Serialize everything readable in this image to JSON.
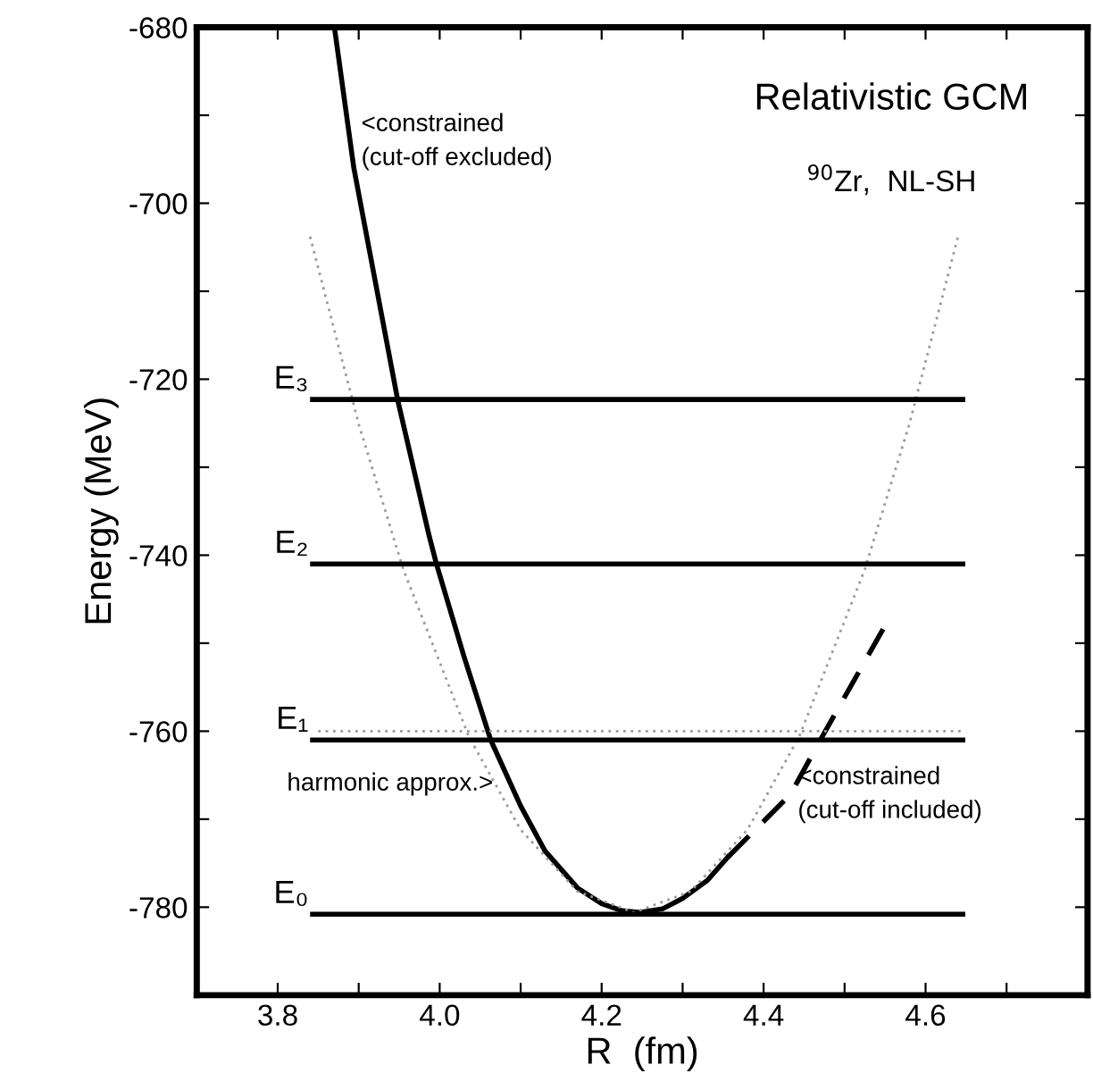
{
  "chart_data": {
    "type": "line",
    "xlabel": "R  (fm)",
    "ylabel": "Energy (MeV)",
    "xlim": [
      3.7,
      4.8
    ],
    "ylim": [
      -790,
      -680
    ],
    "xticks": [
      3.8,
      {
        "value": 3.9,
        "label": null
      },
      {
        "value": 4.0,
        "label": "4.0"
      },
      {
        "value": 4.1,
        "label": null
      },
      4.2,
      {
        "value": 4.3,
        "label": null
      },
      4.4,
      {
        "value": 4.5,
        "label": null
      },
      4.6,
      {
        "value": 4.7,
        "label": null
      }
    ],
    "yticks": [
      -680,
      {
        "value": -690,
        "label": null
      },
      -700,
      {
        "value": -710,
        "label": null
      },
      -720,
      {
        "value": -730,
        "label": null
      },
      -740,
      {
        "value": -750,
        "label": null
      },
      -760,
      {
        "value": -770,
        "label": null
      },
      -780
    ],
    "grid": false,
    "legend": false,
    "marker": "none",
    "series": [
      {
        "color": "#000000",
        "line_style": "solid",
        "x": [
          3.87,
          3.894,
          3.948,
          3.987,
          3.996,
          4.03,
          4.063,
          4.1,
          4.13,
          4.17,
          4.2,
          4.225,
          4.247,
          4.275,
          4.3,
          4.33,
          4.356
        ],
        "values": [
          -680,
          -696,
          -722.3,
          -737.8,
          -741,
          -751.5,
          -761,
          -768.5,
          -773.6,
          -777.8,
          -779.6,
          -780.4,
          -780.6,
          -780.2,
          -779,
          -777,
          -774.3
        ]
      },
      {
        "color": "#000000",
        "line_style": "dashed",
        "x": [
          4.356,
          4.433,
          4.47,
          4.55
        ],
        "values": [
          -774.3,
          -767.2,
          -761,
          -748
        ]
      },
      {
        "color": "#999999",
        "line_style": "dotted",
        "x": [
          3.84,
          3.9,
          3.955,
          4.036,
          4.1,
          4.17,
          4.24,
          4.31,
          4.38,
          4.444,
          4.525,
          4.58,
          4.64
        ],
        "values": [
          -703.8,
          -725.1,
          -741.6,
          -760.6,
          -771.2,
          -778.2,
          -780.6,
          -778.2,
          -771.2,
          -760.6,
          -741.6,
          -725.1,
          -703.8
        ]
      },
      {
        "color": "#999999",
        "line_style": "dotted",
        "x": [
          3.85,
          4.646
        ],
        "values": [
          -760,
          -760
        ]
      },
      {
        "color": "#000000",
        "line_style": "solid",
        "x": [
          3.843,
          4.646
        ],
        "values": [
          -780.8,
          -780.8
        ]
      },
      {
        "color": "#000000",
        "line_style": "solid",
        "x": [
          3.843,
          4.646
        ],
        "values": [
          -761,
          -761
        ]
      },
      {
        "color": "#000000",
        "line_style": "solid",
        "x": [
          3.843,
          4.646
        ],
        "values": [
          -741,
          -741
        ]
      },
      {
        "color": "#000000",
        "line_style": "solid",
        "x": [
          3.843,
          4.646
        ],
        "values": [
          -722.3,
          -722.3
        ]
      }
    ],
    "annotations": [
      {
        "text": "Relativistic GCM"
      },
      {
        "text": "$^{90}$Zr,  NL-SH"
      },
      {
        "text": "E₀",
        "x": 3.843,
        "y": -780.8
      },
      {
        "text": "E₁",
        "x": 3.843,
        "y": -761
      },
      {
        "text": "E₂",
        "x": 3.843,
        "y": -741
      },
      {
        "text": "E₃",
        "x": 3.843,
        "y": -722.3
      },
      {
        "text": "<constrained\n(cut-off excluded)",
        "x": 3.894,
        "y": -693
      },
      {
        "text": "harmonic approx.>",
        "x": 4.066,
        "y": -766
      },
      {
        "text": "<constrained\n(cut-off included)",
        "x": 4.433,
        "y": -767.2
      }
    ]
  }
}
